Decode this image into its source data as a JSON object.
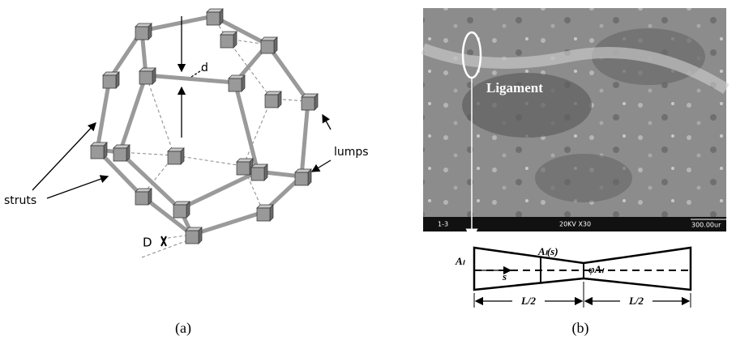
{
  "panel_a": {
    "labels": {
      "d": "d",
      "lumps": "lumps",
      "struts": "struts",
      "D": "D"
    },
    "caption": "(a)"
  },
  "panel_b": {
    "image_label": "Ligament",
    "scale_bar": {
      "sample": "1-3",
      "settings": "20KV X30",
      "scale": "300.00ur"
    },
    "diagram": {
      "area_at_s": "Aₗ(s)",
      "area_end": "Aₗ",
      "coordinate": "s",
      "area_mid": "φAₗ",
      "half_length_left": "L/2",
      "half_length_right": "L/2"
    },
    "caption": "(b)"
  }
}
